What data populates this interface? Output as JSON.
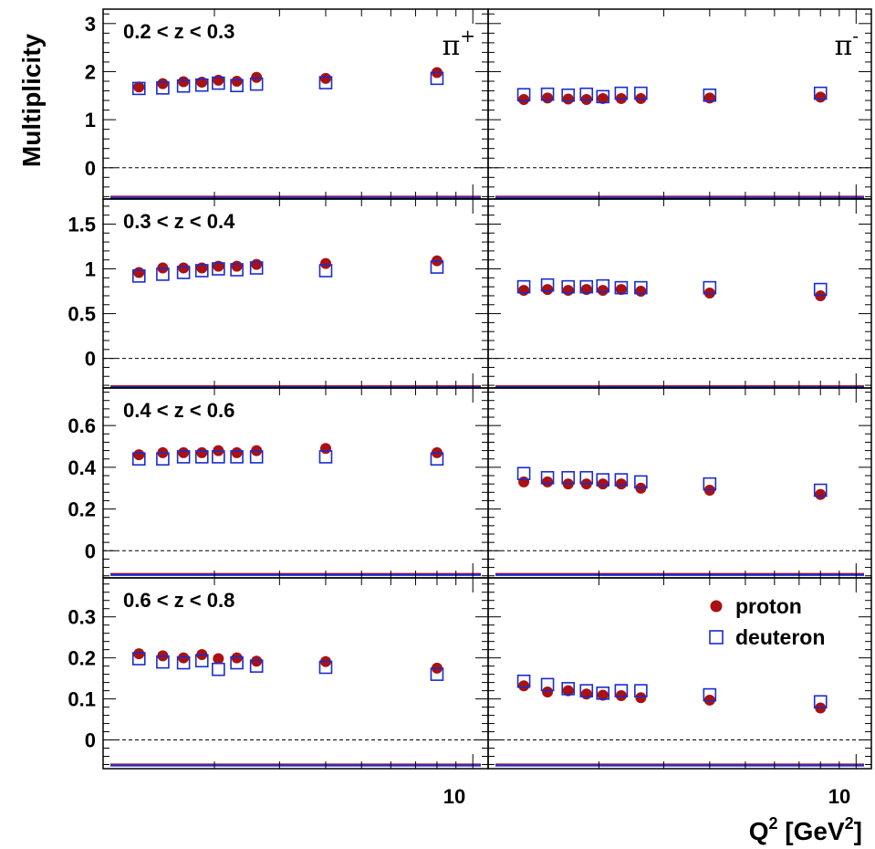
{
  "chart_data": [
    {
      "type": "scatter",
      "panel": "0.2 < z < 0.3, pi+",
      "z_bin_label": "0.2 < z < 0.3",
      "hadron_label": "π",
      "hadron_charge": "+",
      "ylim": [
        -0.65,
        3.3
      ],
      "yticks": [
        "0",
        "1",
        "2",
        "3"
      ],
      "series": [
        {
          "name": "proton",
          "color": "#aa1111",
          "marker": "filled-circle",
          "x": [
            1.25,
            1.45,
            1.65,
            1.85,
            2.05,
            2.3,
            2.6,
            4.0,
            8.0
          ],
          "y": [
            1.68,
            1.75,
            1.79,
            1.78,
            1.82,
            1.8,
            1.88,
            1.86,
            1.98
          ]
        },
        {
          "name": "deuteron",
          "color": "#1a2bd0",
          "marker": "open-square",
          "x": [
            1.25,
            1.45,
            1.65,
            1.85,
            2.05,
            2.3,
            2.6,
            4.0,
            8.0
          ],
          "y": [
            1.65,
            1.66,
            1.7,
            1.72,
            1.76,
            1.71,
            1.74,
            1.77,
            1.86
          ]
        }
      ],
      "sys_band_y": -0.62
    },
    {
      "type": "scatter",
      "panel": "0.2 < z < 0.3, pi-",
      "hadron_label": "π",
      "hadron_charge": "-",
      "ylim": [
        -0.65,
        3.3
      ],
      "series": [
        {
          "name": "proton",
          "color": "#aa1111",
          "marker": "filled-circle",
          "x": [
            1.25,
            1.45,
            1.65,
            1.85,
            2.05,
            2.3,
            2.6,
            4.0,
            8.0
          ],
          "y": [
            1.42,
            1.45,
            1.43,
            1.42,
            1.44,
            1.44,
            1.44,
            1.45,
            1.47
          ]
        },
        {
          "name": "deuteron",
          "color": "#1a2bd0",
          "marker": "open-square",
          "x": [
            1.25,
            1.45,
            1.65,
            1.85,
            2.05,
            2.3,
            2.6,
            4.0,
            8.0
          ],
          "y": [
            1.52,
            1.53,
            1.51,
            1.53,
            1.48,
            1.55,
            1.55,
            1.51,
            1.55
          ]
        }
      ],
      "sys_band_y": -0.62
    },
    {
      "type": "scatter",
      "panel": "0.3 < z < 0.4, pi+",
      "z_bin_label": "0.3 < z < 0.4",
      "ylim": [
        -0.33,
        1.78
      ],
      "yticks": [
        "0",
        "0.5",
        "1",
        "1.5"
      ],
      "series": [
        {
          "name": "proton",
          "color": "#aa1111",
          "marker": "filled-circle",
          "x": [
            1.25,
            1.45,
            1.65,
            1.85,
            2.05,
            2.3,
            2.6,
            4.0,
            8.0
          ],
          "y": [
            0.96,
            1.01,
            1.01,
            1.01,
            1.03,
            1.03,
            1.05,
            1.06,
            1.09
          ]
        },
        {
          "name": "deuteron",
          "color": "#1a2bd0",
          "marker": "open-square",
          "x": [
            1.25,
            1.45,
            1.65,
            1.85,
            2.05,
            2.3,
            2.6,
            4.0,
            8.0
          ],
          "y": [
            0.92,
            0.94,
            0.96,
            0.98,
            1.0,
            0.99,
            1.01,
            0.98,
            1.02
          ]
        }
      ],
      "sys_band_y": -0.32
    },
    {
      "type": "scatter",
      "panel": "0.3 < z < 0.4, pi-",
      "ylim": [
        -0.33,
        1.78
      ],
      "series": [
        {
          "name": "proton",
          "color": "#aa1111",
          "marker": "filled-circle",
          "x": [
            1.25,
            1.45,
            1.65,
            1.85,
            2.05,
            2.3,
            2.6,
            4.0,
            8.0
          ],
          "y": [
            0.76,
            0.77,
            0.76,
            0.77,
            0.76,
            0.77,
            0.75,
            0.73,
            0.7
          ]
        },
        {
          "name": "deuteron",
          "color": "#1a2bd0",
          "marker": "open-square",
          "x": [
            1.25,
            1.45,
            1.65,
            1.85,
            2.05,
            2.3,
            2.6,
            4.0,
            8.0
          ],
          "y": [
            0.8,
            0.82,
            0.8,
            0.8,
            0.81,
            0.79,
            0.79,
            0.79,
            0.77
          ]
        }
      ],
      "sys_band_y": -0.32
    },
    {
      "type": "scatter",
      "panel": "0.4 < z < 0.6, pi+",
      "z_bin_label": "0.4 < z < 0.6",
      "ylim": [
        -0.13,
        0.78
      ],
      "yticks": [
        "0",
        "0.2",
        "0.4",
        "0.6"
      ],
      "series": [
        {
          "name": "proton",
          "color": "#aa1111",
          "marker": "filled-circle",
          "x": [
            1.25,
            1.45,
            1.65,
            1.85,
            2.05,
            2.3,
            2.6,
            4.0,
            8.0
          ],
          "y": [
            0.46,
            0.47,
            0.47,
            0.47,
            0.48,
            0.47,
            0.48,
            0.49,
            0.47
          ]
        },
        {
          "name": "deuteron",
          "color": "#1a2bd0",
          "marker": "open-square",
          "x": [
            1.25,
            1.45,
            1.65,
            1.85,
            2.05,
            2.3,
            2.6,
            4.0,
            8.0
          ],
          "y": [
            0.44,
            0.44,
            0.45,
            0.45,
            0.45,
            0.45,
            0.45,
            0.45,
            0.44
          ]
        }
      ],
      "sys_band_y": -0.115
    },
    {
      "type": "scatter",
      "panel": "0.4 < z < 0.6, pi-",
      "ylim": [
        -0.13,
        0.78
      ],
      "series": [
        {
          "name": "proton",
          "color": "#aa1111",
          "marker": "filled-circle",
          "x": [
            1.25,
            1.45,
            1.65,
            1.85,
            2.05,
            2.3,
            2.6,
            4.0,
            8.0
          ],
          "y": [
            0.33,
            0.33,
            0.32,
            0.32,
            0.32,
            0.32,
            0.3,
            0.29,
            0.27
          ]
        },
        {
          "name": "deuteron",
          "color": "#1a2bd0",
          "marker": "open-square",
          "x": [
            1.25,
            1.45,
            1.65,
            1.85,
            2.05,
            2.3,
            2.6,
            4.0,
            8.0
          ],
          "y": [
            0.37,
            0.35,
            0.35,
            0.35,
            0.34,
            0.34,
            0.33,
            0.32,
            0.29
          ]
        }
      ],
      "sys_band_y": -0.115
    },
    {
      "type": "scatter",
      "panel": "0.6 < z < 0.8, pi+",
      "z_bin_label": "0.6 < z < 0.8",
      "ylim": [
        -0.07,
        0.395
      ],
      "yticks": [
        "0",
        "0.1",
        "0.2",
        "0.3"
      ],
      "series": [
        {
          "name": "proton",
          "color": "#aa1111",
          "marker": "filled-circle",
          "x": [
            1.25,
            1.45,
            1.65,
            1.85,
            2.05,
            2.3,
            2.6,
            4.0,
            8.0
          ],
          "y": [
            0.21,
            0.205,
            0.2,
            0.208,
            0.198,
            0.2,
            0.192,
            0.191,
            0.175
          ]
        },
        {
          "name": "deuteron",
          "color": "#1a2bd0",
          "marker": "open-square",
          "x": [
            1.25,
            1.45,
            1.65,
            1.85,
            2.05,
            2.3,
            2.6,
            4.0,
            8.0
          ],
          "y": [
            0.198,
            0.19,
            0.188,
            0.193,
            0.172,
            0.188,
            0.18,
            0.177,
            0.16
          ]
        }
      ],
      "sys_band_y": -0.062
    },
    {
      "type": "scatter",
      "panel": "0.6 < z < 0.8, pi-",
      "ylim": [
        -0.07,
        0.395
      ],
      "series": [
        {
          "name": "proton",
          "color": "#aa1111",
          "marker": "filled-circle",
          "x": [
            1.25,
            1.45,
            1.65,
            1.85,
            2.05,
            2.3,
            2.6,
            4.0,
            8.0
          ],
          "y": [
            0.132,
            0.117,
            0.12,
            0.112,
            0.109,
            0.108,
            0.103,
            0.097,
            0.078
          ]
        },
        {
          "name": "deuteron",
          "color": "#1a2bd0",
          "marker": "open-square",
          "x": [
            1.25,
            1.45,
            1.65,
            1.85,
            2.05,
            2.3,
            2.6,
            4.0,
            8.0
          ],
          "y": [
            0.143,
            0.135,
            0.125,
            0.12,
            0.114,
            0.12,
            0.12,
            0.11,
            0.093
          ]
        }
      ],
      "sys_band_y": -0.062
    }
  ],
  "axes": {
    "ylabel": "Multiplicity",
    "xlabel_main": "Q",
    "xlabel_sup": "2",
    "xlabel_rest": " [GeV",
    "xlabel_sup2": "2",
    "xlabel_close": "]",
    "x_scale": "log",
    "xlim": [
      1.0,
      11.0
    ],
    "x_major_tick_label": "10"
  },
  "legend": {
    "position": "bottom-right panel, top-right",
    "items": [
      {
        "label": "proton",
        "marker": "filled-circle",
        "color": "#aa1111"
      },
      {
        "label": "deuteron",
        "marker": "open-square",
        "color": "#1a2bd0"
      }
    ]
  },
  "colors": {
    "proton": "#aa1111",
    "deuteron": "#1a2bd0",
    "sys_band": "#1e2ad0"
  }
}
